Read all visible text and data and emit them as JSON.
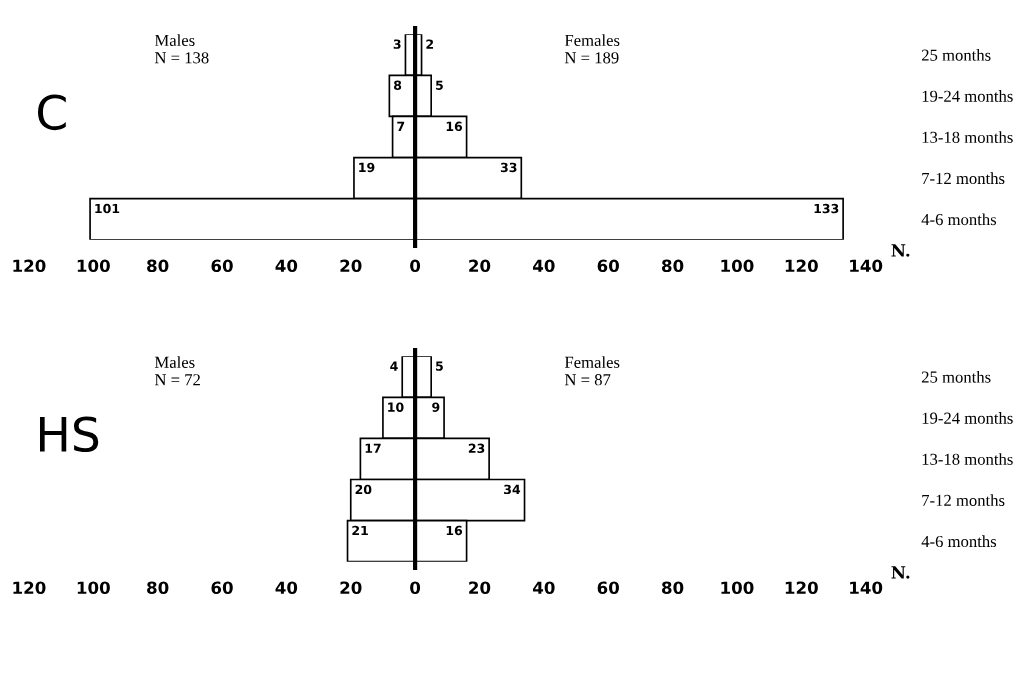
{
  "chart_data": [
    {
      "type": "bar",
      "orientation": "horizontal",
      "title": "C",
      "xlabel": "N.",
      "categories": [
        "25 months",
        "19-24 months",
        "13-18 months",
        "7-12 months",
        "4-6 months"
      ],
      "series": [
        {
          "color": "#ffffff",
          "values": [
            3,
            8,
            7,
            19,
            101
          ],
          "base": [
            -3,
            -8,
            -7,
            -19,
            -101
          ],
          "value_labels": [
            "3",
            "8",
            "7",
            "19",
            "101"
          ]
        },
        {
          "color": "#ffffff",
          "values": [
            2,
            5,
            16,
            33,
            133
          ],
          "value_labels": [
            "2",
            "5",
            "16",
            "33",
            "133"
          ]
        }
      ],
      "xlim": [
        -120,
        140
      ],
      "xticks": [
        {
          "value": -120,
          "label": "120"
        },
        {
          "value": -100,
          "label": "100"
        },
        {
          "value": -80,
          "label": "80"
        },
        {
          "value": -60,
          "label": "60"
        },
        {
          "value": -40,
          "label": "40"
        },
        {
          "value": -20,
          "label": "20"
        },
        0,
        20,
        40,
        60,
        80,
        100,
        120,
        140
      ],
      "ref_lines": [
        {
          "axis": "x",
          "value": 0,
          "color": "#000000"
        }
      ],
      "annotations": [
        "Males\nN = 138",
        "Females\nN = 189"
      ]
    },
    {
      "type": "bar",
      "orientation": "horizontal",
      "title": "HS",
      "xlabel": "N.",
      "categories": [
        "25 months",
        "19-24 months",
        "13-18 months",
        "7-12 months",
        "4-6 months"
      ],
      "series": [
        {
          "color": "#ffffff",
          "values": [
            4,
            10,
            17,
            20,
            21
          ],
          "base": [
            -4,
            -10,
            -17,
            -20,
            -21
          ],
          "value_labels": [
            "4",
            "10",
            "17",
            "20",
            "21"
          ]
        },
        {
          "color": "#ffffff",
          "values": [
            5,
            9,
            23,
            34,
            16
          ],
          "value_labels": [
            "5",
            "9",
            "23",
            "34",
            "16"
          ]
        }
      ],
      "xlim": [
        -120,
        140
      ],
      "xticks": [
        {
          "value": -120,
          "label": "120"
        },
        {
          "value": -100,
          "label": "100"
        },
        {
          "value": -80,
          "label": "80"
        },
        {
          "value": -60,
          "label": "60"
        },
        {
          "value": -40,
          "label": "40"
        },
        {
          "value": -20,
          "label": "20"
        },
        0,
        20,
        40,
        60,
        80,
        100,
        120,
        140
      ],
      "ref_lines": [
        {
          "axis": "x",
          "value": 0,
          "color": "#000000"
        }
      ],
      "annotations": [
        "Males\nN = 72",
        "Females\nN = 87"
      ]
    }
  ]
}
